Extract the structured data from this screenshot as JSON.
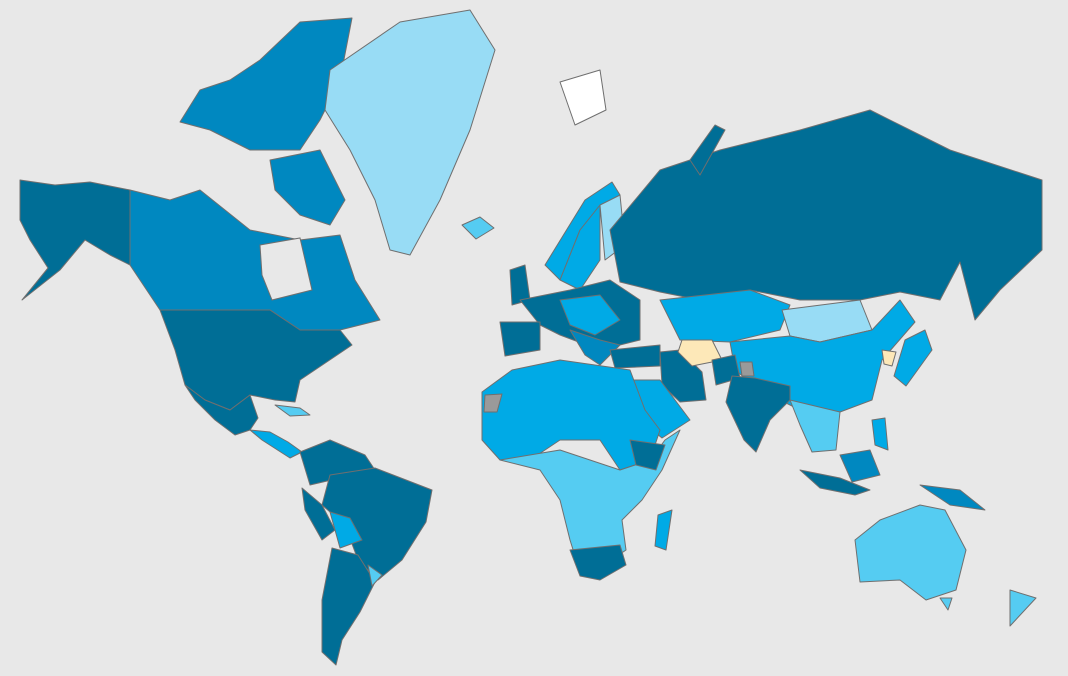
{
  "map": {
    "type": "choropleth-world",
    "background": "#e8e8e8",
    "border_color": "#6f6f6f",
    "fills": {
      "level1": "#006e96",
      "level2": "#0088c0",
      "level3": "#00aae6",
      "level4": "#55ccf2",
      "level5": "#98dcf5",
      "highlight": "#fde8b8",
      "no_data": "#9a9a9a",
      "unassigned": "#ffffff"
    }
  }
}
